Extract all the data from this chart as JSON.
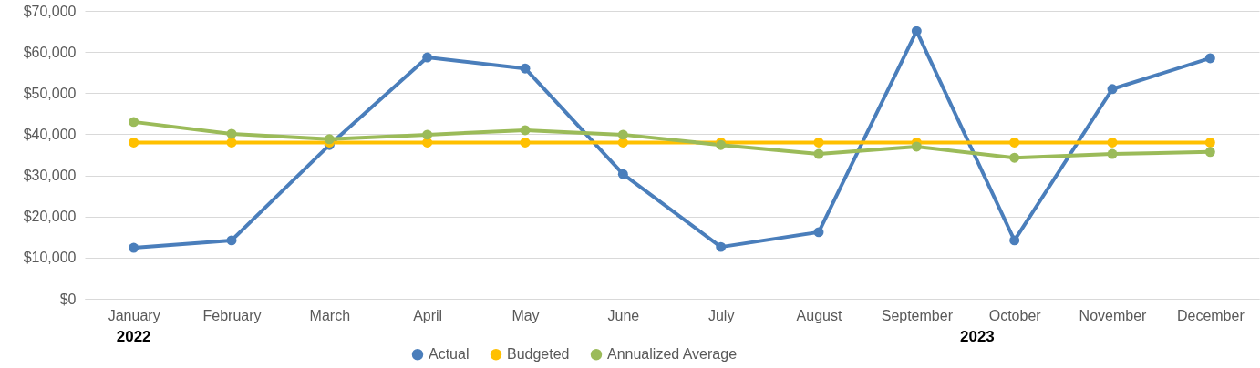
{
  "chart_data": {
    "type": "line",
    "categories": [
      "January",
      "February",
      "March",
      "April",
      "May",
      "June",
      "July",
      "August",
      "September",
      "October",
      "November",
      "December"
    ],
    "series": [
      {
        "name": "Actual",
        "color": "#4a7ebb",
        "values": [
          12400,
          14200,
          37400,
          58700,
          56000,
          30300,
          12600,
          16200,
          65100,
          14200,
          51000,
          58500
        ]
      },
      {
        "name": "Budgeted",
        "color": "#ffc000",
        "values": [
          38000,
          38000,
          38000,
          38000,
          38000,
          38000,
          38000,
          38000,
          38000,
          38000,
          38000,
          38000
        ]
      },
      {
        "name": "Annualized Average",
        "color": "#9bbb59",
        "values": [
          43000,
          40100,
          38800,
          39900,
          41000,
          39900,
          37400,
          35200,
          37000,
          34300,
          35200,
          35700
        ]
      }
    ],
    "ylim": [
      0,
      70000
    ],
    "yticks": [
      {
        "value": 0,
        "label": "$0"
      },
      {
        "value": 10000,
        "label": "$10,000"
      },
      {
        "value": 20000,
        "label": "$20,000"
      },
      {
        "value": 30000,
        "label": "$30,000"
      },
      {
        "value": 40000,
        "label": "$40,000"
      },
      {
        "value": 50000,
        "label": "$50,000"
      },
      {
        "value": 60000,
        "label": "$60,000"
      },
      {
        "value": 70000,
        "label": "$70,000"
      }
    ],
    "annotations": [
      "2022",
      "2023"
    ],
    "grid": "y",
    "legend": "bottom",
    "marker": "circle",
    "line_style": "solid"
  }
}
